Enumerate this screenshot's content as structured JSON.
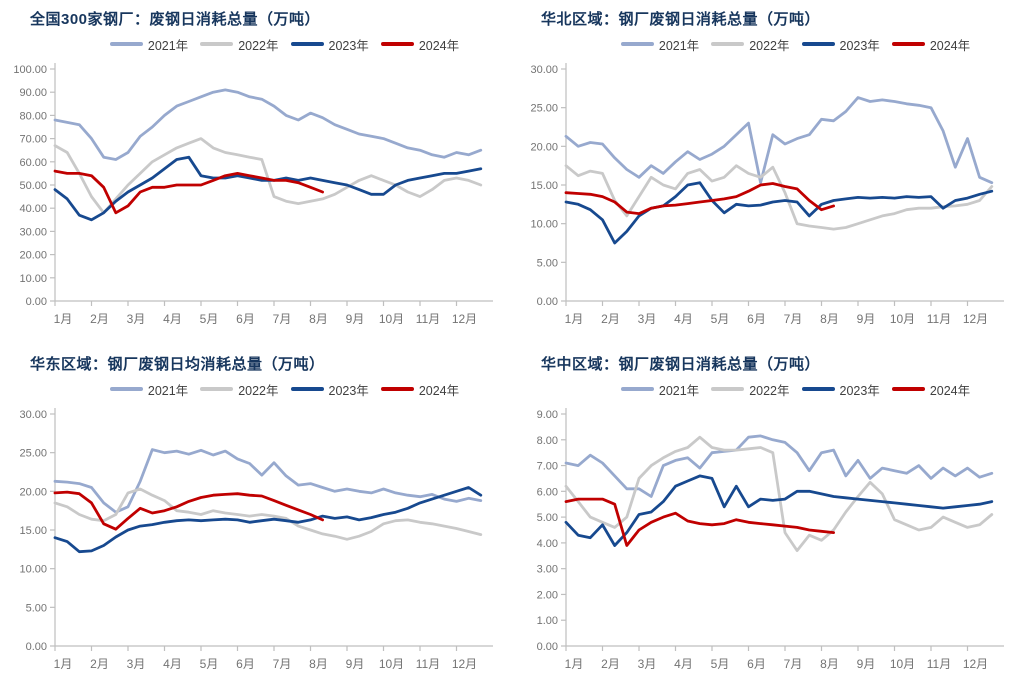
{
  "styles": {
    "background": "#FFFFFF",
    "title_color": "#17365D",
    "axis_text_color": "#737373",
    "axis_line_color": "#BFBFBF",
    "legend_text_color": "#404040"
  },
  "x_categories": [
    "1月",
    "2月",
    "3月",
    "4月",
    "5月",
    "6月",
    "7月",
    "8月",
    "9月",
    "10月",
    "11月",
    "12月"
  ],
  "chart_data": [
    {
      "type": "line",
      "title": "全国300家钢厂：废钢日消耗总量（万吨）",
      "ylabel": "万吨",
      "ylim": [
        0,
        100
      ],
      "ytick_step": 10,
      "y_decimals": 2,
      "grid": false,
      "legend_position": "top",
      "series": [
        {
          "name": "2021年",
          "color": "#97A9CE",
          "x_start": 1,
          "x_step": 0.3333,
          "values": [
            78,
            77,
            76,
            70,
            62,
            61,
            64,
            71,
            75,
            80,
            84,
            86,
            88,
            90,
            91,
            90,
            88,
            87,
            84,
            80,
            78,
            81,
            79,
            76,
            74,
            72,
            71,
            70,
            68,
            66,
            65,
            63,
            62,
            64,
            63,
            65
          ]
        },
        {
          "name": "2022年",
          "color": "#C9C9C9",
          "x_start": 1,
          "x_step": 0.3333,
          "values": [
            67,
            64,
            55,
            45,
            38,
            44,
            50,
            55,
            60,
            63,
            66,
            68,
            70,
            66,
            64,
            63,
            62,
            61,
            45,
            43,
            42,
            43,
            44,
            46,
            49,
            52,
            54,
            52,
            50,
            47,
            45,
            48,
            52,
            53,
            52,
            50
          ]
        },
        {
          "name": "2023年",
          "color": "#17498F",
          "x_start": 1,
          "x_step": 0.3333,
          "values": [
            48,
            44,
            37,
            35,
            38,
            43,
            47,
            50,
            53,
            57,
            61,
            62,
            54,
            53,
            53,
            54,
            53,
            52,
            52,
            53,
            52,
            53,
            52,
            51,
            50,
            48,
            46,
            46,
            50,
            52,
            53,
            54,
            55,
            55,
            56,
            57
          ]
        },
        {
          "name": "2024年",
          "color": "#C00000",
          "x_start": 1,
          "x_step": 0.3333,
          "values": [
            56,
            55,
            55,
            54,
            49,
            38,
            41,
            47,
            49,
            49,
            50,
            50,
            50,
            52,
            54,
            55,
            54,
            53,
            52,
            52,
            51,
            49,
            47
          ]
        }
      ]
    },
    {
      "type": "line",
      "title": "华北区域：钢厂废钢日消耗总量（万吨）",
      "ylabel": "万吨",
      "ylim": [
        0,
        30
      ],
      "ytick_step": 5,
      "y_decimals": 2,
      "grid": false,
      "legend_position": "top",
      "series": [
        {
          "name": "2021年",
          "color": "#97A9CE",
          "x_start": 1,
          "x_step": 0.3333,
          "values": [
            21.3,
            20,
            20.5,
            20.3,
            18.5,
            17,
            16,
            17.5,
            16.5,
            18,
            19.3,
            18.3,
            19,
            20,
            21.5,
            23,
            15.3,
            21.5,
            20.3,
            21,
            21.5,
            23.5,
            23.3,
            24.5,
            26.3,
            25.8,
            26,
            25.8,
            25.5,
            25.3,
            25,
            22,
            17.3,
            21,
            16,
            15.3
          ]
        },
        {
          "name": "2022年",
          "color": "#C9C9C9",
          "x_start": 1,
          "x_step": 0.3333,
          "values": [
            17.5,
            16.2,
            16.8,
            16.5,
            13,
            11,
            13.5,
            16,
            15,
            14.5,
            16.5,
            17,
            15.5,
            16,
            17.5,
            16.5,
            16,
            17.3,
            14,
            10,
            9.7,
            9.5,
            9.3,
            9.5,
            10,
            10.5,
            11,
            11.3,
            11.8,
            12,
            12,
            12.2,
            12.3,
            12.5,
            13,
            14.8
          ]
        },
        {
          "name": "2023年",
          "color": "#17498F",
          "x_start": 1,
          "x_step": 0.3333,
          "values": [
            12.8,
            12.5,
            11.8,
            10.5,
            7.5,
            9,
            11,
            12,
            12.3,
            13.5,
            15,
            15.3,
            13,
            11.4,
            12.5,
            12.3,
            12.4,
            12.8,
            13,
            12.8,
            11,
            12.5,
            13,
            13.2,
            13.4,
            13.3,
            13.4,
            13.3,
            13.5,
            13.4,
            13.5,
            12,
            13,
            13.3,
            13.8,
            14.2
          ]
        },
        {
          "name": "2024年",
          "color": "#C00000",
          "x_start": 1,
          "x_step": 0.3333,
          "values": [
            14,
            13.9,
            13.8,
            13.5,
            12.8,
            11.5,
            11.3,
            12,
            12.3,
            12.4,
            12.6,
            12.8,
            13,
            13.2,
            13.5,
            14.2,
            15,
            15.2,
            14.8,
            14.5,
            13,
            11.8,
            12.3
          ]
        }
      ]
    },
    {
      "type": "line",
      "title": "华东区域：钢厂废钢日均消耗总量（万吨）",
      "ylabel": "万吨",
      "ylim": [
        0,
        30
      ],
      "ytick_step": 5,
      "y_decimals": 2,
      "grid": false,
      "legend_position": "top",
      "series": [
        {
          "name": "2021年",
          "color": "#97A9CE",
          "x_start": 1,
          "x_step": 0.3333,
          "values": [
            21.3,
            21.2,
            21,
            20.5,
            18.5,
            17.3,
            18,
            21.3,
            25.4,
            25,
            25.2,
            24.8,
            25.3,
            24.7,
            25.2,
            24.2,
            23.6,
            22.1,
            23.7,
            22,
            20.8,
            21,
            20.5,
            20,
            20.3,
            20,
            19.8,
            20.3,
            19.8,
            19.5,
            19.3,
            19.6,
            19,
            18.7,
            19.1,
            18.8
          ]
        },
        {
          "name": "2022年",
          "color": "#C9C9C9",
          "x_start": 1,
          "x_step": 0.3333,
          "values": [
            18.5,
            18,
            17,
            16.4,
            16.2,
            17,
            19.8,
            20.3,
            19.5,
            18.8,
            17.5,
            17.3,
            17,
            17.5,
            17.2,
            17,
            16.8,
            17,
            16.8,
            16.5,
            15.5,
            15,
            14.5,
            14.2,
            13.8,
            14.2,
            14.8,
            15.8,
            16.2,
            16.3,
            16,
            15.8,
            15.5,
            15.2,
            14.8,
            14.4
          ]
        },
        {
          "name": "2023年",
          "color": "#17498F",
          "x_start": 1,
          "x_step": 0.3333,
          "values": [
            14,
            13.5,
            12.2,
            12.3,
            13,
            14.1,
            15,
            15.5,
            15.7,
            16,
            16.2,
            16.3,
            16.2,
            16.3,
            16.4,
            16.3,
            16,
            16.2,
            16.4,
            16.2,
            16,
            16.3,
            16.8,
            16.5,
            16.7,
            16.3,
            16.6,
            17,
            17.3,
            17.8,
            18.5,
            19,
            19.5,
            20,
            20.5,
            19.5
          ]
        },
        {
          "name": "2024年",
          "color": "#C00000",
          "x_start": 1,
          "x_step": 0.3333,
          "values": [
            19.8,
            19.9,
            19.7,
            18.5,
            15.8,
            15.1,
            16.5,
            17.8,
            17.2,
            17.5,
            18,
            18.7,
            19.2,
            19.5,
            19.6,
            19.7,
            19.5,
            19.4,
            18.8,
            18.2,
            17.6,
            17,
            16.3
          ]
        }
      ]
    },
    {
      "type": "line",
      "title": "华中区域：钢厂废钢日消耗总量（万吨）",
      "ylabel": "万吨",
      "ylim": [
        0,
        9
      ],
      "ytick_step": 1,
      "y_decimals": 2,
      "grid": false,
      "legend_position": "top",
      "series": [
        {
          "name": "2021年",
          "color": "#97A9CE",
          "x_start": 1,
          "x_step": 0.3333,
          "values": [
            7.1,
            7,
            7.4,
            7.1,
            6.6,
            6.1,
            6.1,
            5.8,
            7,
            7.2,
            7.3,
            6.9,
            7.5,
            7.55,
            7.6,
            8.1,
            8.15,
            8,
            7.9,
            7.5,
            6.8,
            7.5,
            7.6,
            6.6,
            7.2,
            6.5,
            6.9,
            6.8,
            6.7,
            7,
            6.5,
            6.9,
            6.6,
            6.9,
            6.55,
            6.7
          ]
        },
        {
          "name": "2022年",
          "color": "#C9C9C9",
          "x_start": 1,
          "x_step": 0.3333,
          "values": [
            6.2,
            5.6,
            5,
            4.8,
            4.6,
            5,
            6.5,
            7,
            7.3,
            7.55,
            7.7,
            8.1,
            7.7,
            7.6,
            7.6,
            7.65,
            7.7,
            7.5,
            4.4,
            3.7,
            4.3,
            4.1,
            4.5,
            5.2,
            5.8,
            6.35,
            5.9,
            4.9,
            4.7,
            4.5,
            4.6,
            5,
            4.8,
            4.6,
            4.7,
            5.1
          ]
        },
        {
          "name": "2023年",
          "color": "#17498F",
          "x_start": 1,
          "x_step": 0.3333,
          "values": [
            4.8,
            4.3,
            4.2,
            4.7,
            3.9,
            4.4,
            5.1,
            5.2,
            5.6,
            6.2,
            6.4,
            6.6,
            6.5,
            5.4,
            6.2,
            5.4,
            5.7,
            5.65,
            5.7,
            6,
            6,
            5.9,
            5.8,
            5.75,
            5.7,
            5.65,
            5.6,
            5.55,
            5.5,
            5.45,
            5.4,
            5.35,
            5.4,
            5.45,
            5.5,
            5.6
          ]
        },
        {
          "name": "2024年",
          "color": "#C00000",
          "x_start": 1,
          "x_step": 0.3333,
          "values": [
            5.6,
            5.7,
            5.7,
            5.7,
            5.5,
            3.9,
            4.5,
            4.8,
            5,
            5.15,
            4.85,
            4.75,
            4.7,
            4.75,
            4.9,
            4.8,
            4.75,
            4.7,
            4.65,
            4.6,
            4.5,
            4.45,
            4.4
          ]
        }
      ]
    }
  ]
}
